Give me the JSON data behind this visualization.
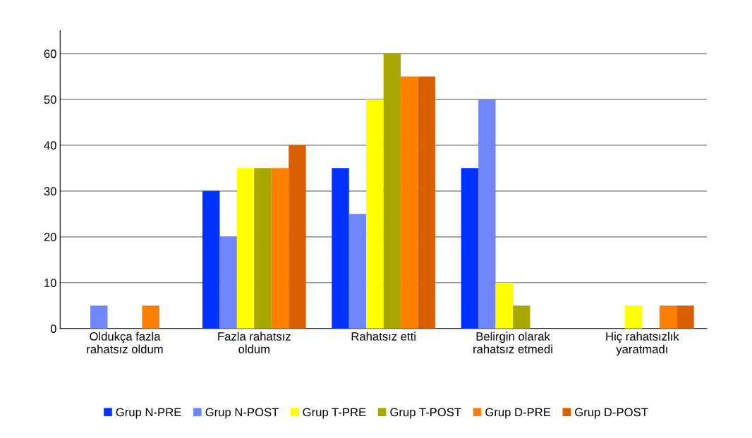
{
  "chart_data": {
    "type": "bar",
    "categories": [
      "Oldukça fazla\nrahatsız oldum",
      "Fazla rahatsız\noldum",
      "Rahatsız etti",
      "Belirgin olarak\nrahatsız etmedi",
      "Hiç rahatsızlık\nyaratmadı"
    ],
    "series": [
      {
        "name": "Grup N-PRE",
        "color": "#0033ff",
        "values": [
          0,
          30,
          35,
          35,
          0
        ]
      },
      {
        "name": "Grup N-POST",
        "color": "#6f86ff",
        "values": [
          5,
          20,
          25,
          50,
          0
        ]
      },
      {
        "name": "Grup T-PRE",
        "color": "#ffff00",
        "values": [
          0,
          35,
          50,
          10,
          5
        ]
      },
      {
        "name": "Grup T-POST",
        "color": "#a8a800",
        "values": [
          0,
          35,
          60,
          5,
          0
        ]
      },
      {
        "name": "Grup D-PRE",
        "color": "#ff7f00",
        "values": [
          5,
          35,
          55,
          0,
          5
        ]
      },
      {
        "name": "Grup D-POST",
        "color": "#d95f00",
        "values": [
          0,
          40,
          55,
          0,
          5
        ]
      }
    ],
    "ylim": [
      0,
      65
    ],
    "yticks": [
      0,
      10,
      20,
      30,
      40,
      50,
      60
    ],
    "grid": "y",
    "legend": "bottom"
  }
}
